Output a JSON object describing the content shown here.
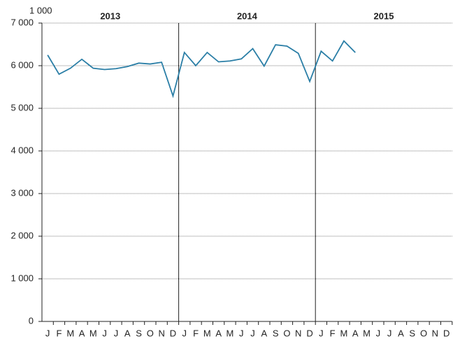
{
  "chart_data": {
    "type": "line",
    "unit_label": "1 000",
    "year_labels": [
      "2013",
      "2014",
      "2015"
    ],
    "categories": [
      "J",
      "F",
      "M",
      "A",
      "M",
      "J",
      "J",
      "A",
      "S",
      "O",
      "N",
      "D",
      "J",
      "F",
      "M",
      "A",
      "M",
      "J",
      "J",
      "A",
      "S",
      "O",
      "N",
      "D",
      "J",
      "F",
      "M",
      "A",
      "M",
      "J",
      "J",
      "A",
      "S",
      "O",
      "N",
      "D"
    ],
    "series": [
      {
        "color": "#2a7ea6",
        "values": [
          6250,
          5800,
          5940,
          6150,
          5940,
          5910,
          5930,
          5980,
          6060,
          6040,
          6080,
          5290,
          6310,
          6000,
          6310,
          6090,
          6110,
          6160,
          6400,
          5990,
          6490,
          6460,
          6290,
          5630,
          6340,
          6110,
          6580,
          6310,
          null,
          null,
          null,
          null,
          null,
          null,
          null,
          null
        ]
      }
    ],
    "ylim": [
      0,
      7000
    ],
    "yticks": [
      0,
      {
        "value": 1000,
        "label": "1 000"
      },
      {
        "value": 2000,
        "label": "2 000"
      },
      {
        "value": 3000,
        "label": "3 000"
      },
      {
        "value": 4000,
        "label": "4 000"
      },
      {
        "value": 5000,
        "label": "5 000"
      },
      {
        "value": 6000,
        "label": "6 000"
      },
      {
        "value": 7000,
        "label": "7 000"
      }
    ],
    "grid": true
  }
}
